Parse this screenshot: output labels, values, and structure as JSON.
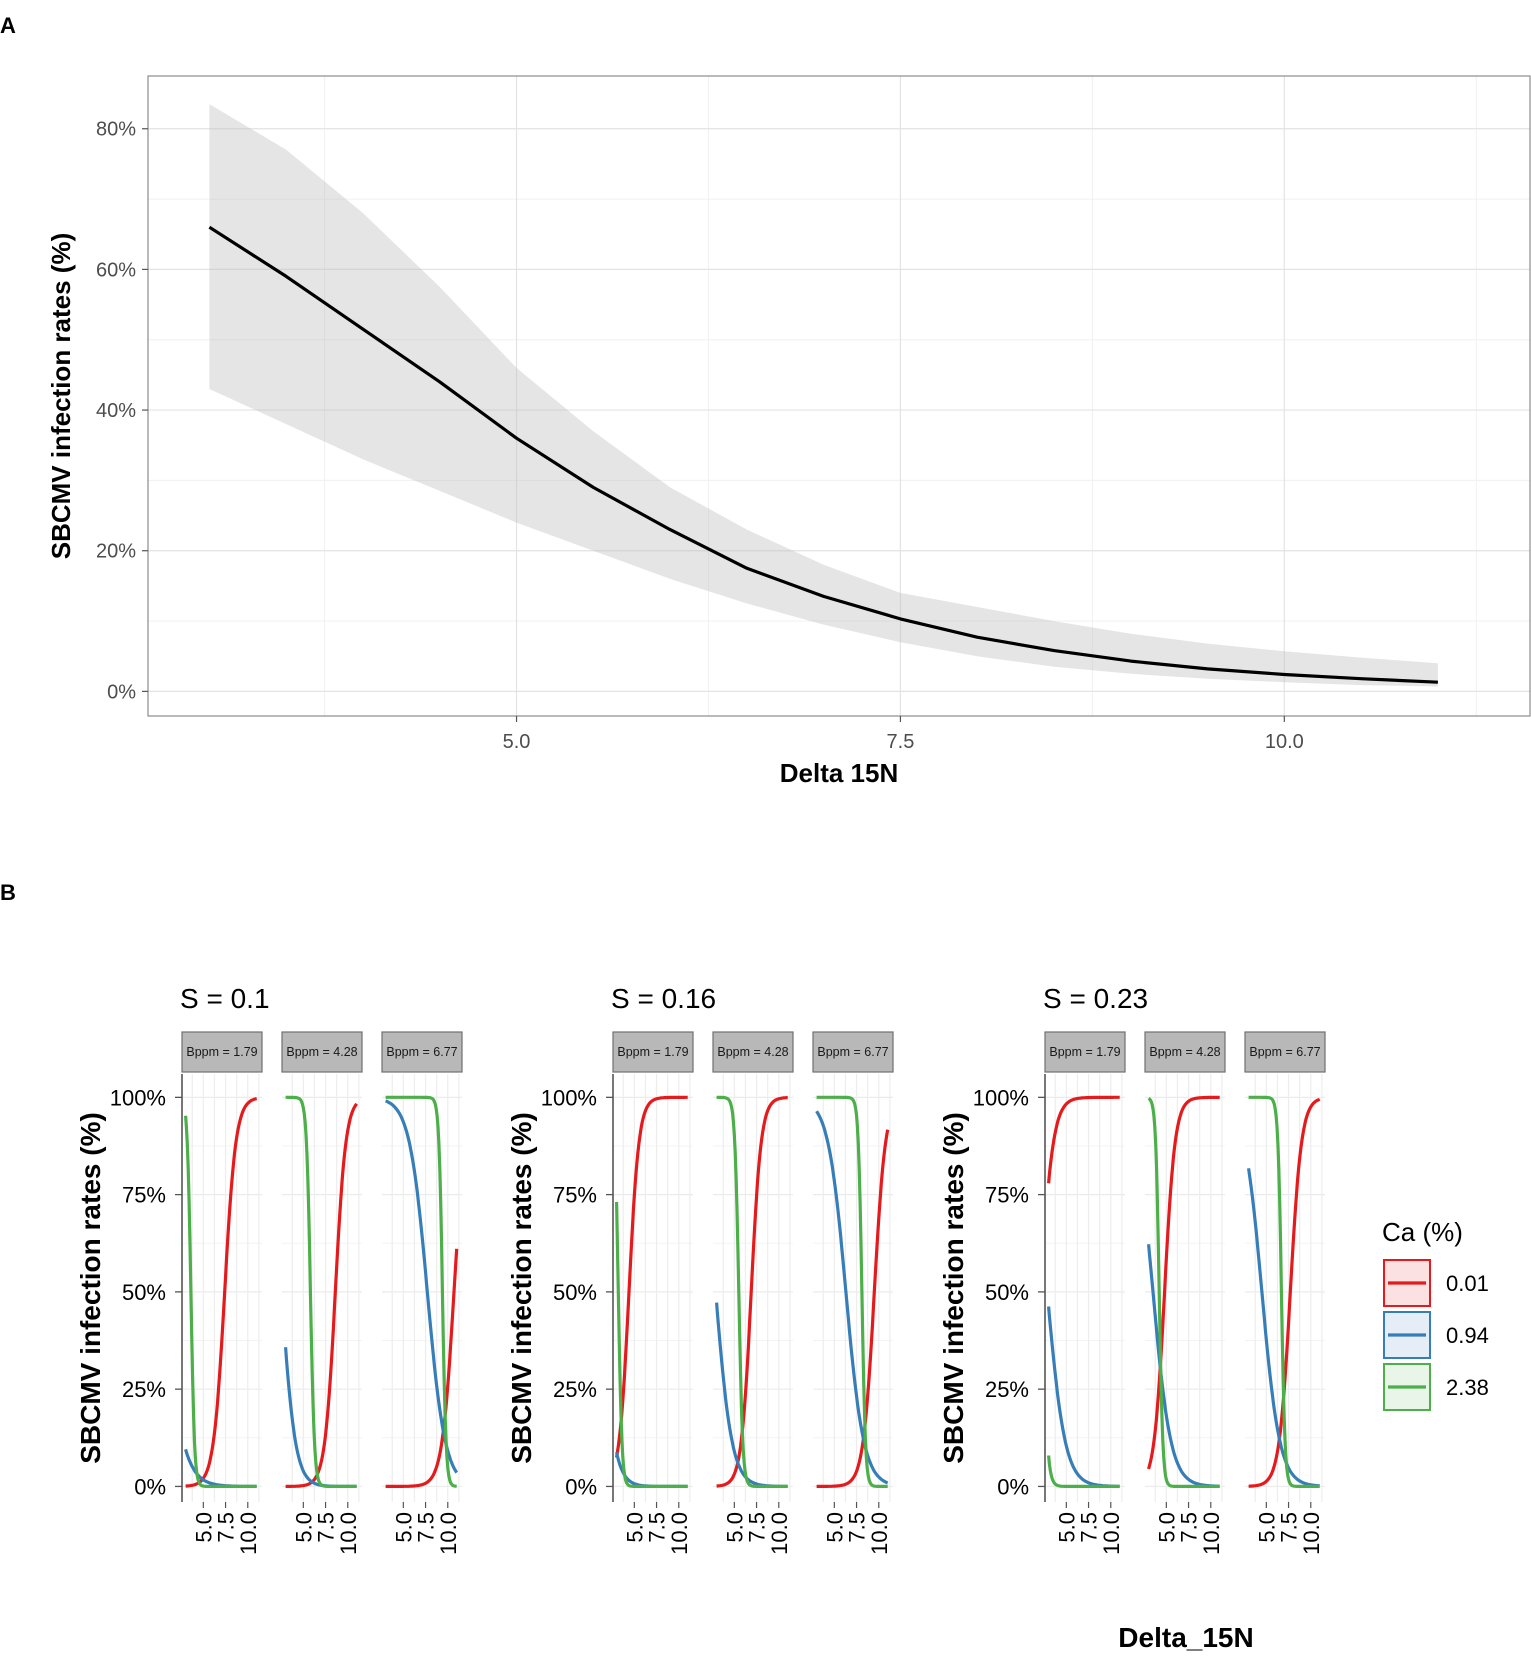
{
  "panel_labels": [
    "A",
    "B"
  ],
  "chart_data": [
    {
      "id": "A",
      "type": "line",
      "title": "",
      "xlabel": "Delta 15N",
      "ylabel": "SBCMV infection rates (%)",
      "xlim": [
        2.6,
        11.6
      ],
      "ylim": [
        -0.035,
        0.875
      ],
      "x_ticks": [
        5.0,
        7.5,
        10.0
      ],
      "x_tick_labels": [
        "5.0",
        "7.5",
        "10.0"
      ],
      "y_ticks": [
        0,
        0.2,
        0.4,
        0.6,
        0.8
      ],
      "y_tick_labels": [
        "0%",
        "20%",
        "40%",
        "60%",
        "80%"
      ],
      "grid": true,
      "series": [
        {
          "name": "fit",
          "color": "#000000",
          "x": [
            3.0,
            3.5,
            4.0,
            4.5,
            5.0,
            5.5,
            6.0,
            6.5,
            7.0,
            7.5,
            8.0,
            8.5,
            9.0,
            9.5,
            10.0,
            10.5,
            11.0
          ],
          "y": [
            0.66,
            0.59,
            0.515,
            0.44,
            0.36,
            0.29,
            0.23,
            0.175,
            0.135,
            0.103,
            0.077,
            0.058,
            0.043,
            0.032,
            0.024,
            0.018,
            0.013
          ],
          "lower": [
            0.43,
            0.38,
            0.33,
            0.285,
            0.24,
            0.2,
            0.16,
            0.125,
            0.095,
            0.07,
            0.05,
            0.035,
            0.025,
            0.018,
            0.013,
            0.009,
            0.007
          ],
          "upper": [
            0.835,
            0.77,
            0.68,
            0.575,
            0.46,
            0.37,
            0.29,
            0.23,
            0.18,
            0.14,
            0.12,
            0.1,
            0.082,
            0.068,
            0.057,
            0.048,
            0.04
          ]
        }
      ]
    },
    {
      "id": "B",
      "type": "line",
      "xlabel": "Delta_15N",
      "ylabel": "SBCMV infection rates (%)",
      "xlim": [
        2.6,
        11.6
      ],
      "ylim": [
        -0.04,
        1.06
      ],
      "x_ticks": [
        5.0,
        7.5,
        10.0
      ],
      "x_tick_labels": [
        "5.0",
        "7.5",
        "10.0"
      ],
      "y_ticks": [
        0,
        0.25,
        0.5,
        0.75,
        1.0
      ],
      "y_tick_labels": [
        "0%",
        "25%",
        "50%",
        "75%",
        "100%"
      ],
      "legend": {
        "title": "Ca (%)",
        "position": "right",
        "entries": [
          {
            "label": "0.01",
            "color": "#e41a1c"
          },
          {
            "label": "0.94",
            "color": "#377eb8"
          },
          {
            "label": "2.38",
            "color": "#4daf4a"
          }
        ]
      },
      "groups": [
        {
          "title": "S = 0.1",
          "facets": [
            {
              "strip": "Bppm = 1.79",
              "curves": [
                {
                  "ca": "0.01",
                  "x0": 7.4,
                  "k": 1.6,
                  "x_start": 3.0,
                  "lo_w": 0.9,
                  "hi_w": 0.9
                },
                {
                  "ca": "0.94",
                  "x0": 0.5,
                  "k": -0.9,
                  "x_start": 3.0,
                  "lo_w": 0.6,
                  "hi_w": 0.6
                },
                {
                  "ca": "2.38",
                  "x0": 3.6,
                  "k": -5.0,
                  "x_start": 3.0,
                  "lo_w": 0.6,
                  "hi_w": 1.0
                }
              ]
            },
            {
              "strip": "Bppm = 4.28",
              "curves": [
                {
                  "ca": "0.01",
                  "x0": 8.6,
                  "k": 1.7,
                  "x_start": 3.0,
                  "lo_w": 1.0,
                  "hi_w": 1.0
                },
                {
                  "ca": "0.94",
                  "x0": 2.55,
                  "k": -1.3,
                  "x_start": 3.0,
                  "lo_w": 0.8,
                  "hi_w": 1.0
                },
                {
                  "ca": "2.38",
                  "x0": 5.8,
                  "k": -4.5,
                  "x_start": 3.0,
                  "lo_w": 0.6,
                  "hi_w": 0.9
                }
              ]
            },
            {
              "strip": "Bppm = 6.77",
              "curves": [
                {
                  "ca": "0.01",
                  "x0": 10.7,
                  "k": 1.5,
                  "x_start": 3.0,
                  "lo_w": 1.0,
                  "hi_w": 1.0
                },
                {
                  "ca": "0.94",
                  "x0": 7.7,
                  "k": -1.0,
                  "x_start": 3.0,
                  "lo_w": 1.5,
                  "hi_w": 2.5
                },
                {
                  "ca": "2.38",
                  "x0": 9.4,
                  "k": -5.0,
                  "x_start": 3.0,
                  "lo_w": 0.6,
                  "hi_w": 0.9
                }
              ]
            }
          ]
        },
        {
          "title": "S = 0.16",
          "facets": [
            {
              "strip": "Bppm = 1.79",
              "curves": [
                {
                  "ca": "0.01",
                  "x0": 4.4,
                  "k": 1.8,
                  "x_start": 3.0,
                  "lo_w": 0.9,
                  "hi_w": 0.9
                },
                {
                  "ca": "0.94",
                  "x0": 1.2,
                  "k": -1.3,
                  "x_start": 3.0,
                  "lo_w": 0.9,
                  "hi_w": 1.2
                },
                {
                  "ca": "2.38",
                  "x0": 3.2,
                  "k": -5.0,
                  "x_start": 3.0,
                  "lo_w": 0.6,
                  "hi_w": 1.0
                }
              ]
            },
            {
              "strip": "Bppm = 4.28",
              "curves": [
                {
                  "ca": "0.01",
                  "x0": 6.9,
                  "k": 1.8,
                  "x_start": 3.0,
                  "lo_w": 0.9,
                  "hi_w": 0.9
                },
                {
                  "ca": "0.94",
                  "x0": 2.9,
                  "k": -1.1,
                  "x_start": 3.0,
                  "lo_w": 0.9,
                  "hi_w": 1.6
                },
                {
                  "ca": "2.38",
                  "x0": 5.5,
                  "k": -4.5,
                  "x_start": 3.0,
                  "lo_w": 0.6,
                  "hi_w": 0.9
                }
              ]
            },
            {
              "strip": "Bppm = 6.77",
              "curves": [
                {
                  "ca": "0.01",
                  "x0": 9.5,
                  "k": 1.6,
                  "x_start": 3.0,
                  "lo_w": 1.0,
                  "hi_w": 1.0
                },
                {
                  "ca": "0.94",
                  "x0": 6.3,
                  "k": -1.0,
                  "x_start": 3.0,
                  "lo_w": 1.4,
                  "hi_w": 2.0
                },
                {
                  "ca": "2.38",
                  "x0": 8.1,
                  "k": -5.0,
                  "x_start": 3.0,
                  "lo_w": 0.6,
                  "hi_w": 0.9
                }
              ]
            }
          ]
        },
        {
          "title": "S = 0.23",
          "facets": [
            {
              "strip": "Bppm = 1.79",
              "curves": [
                {
                  "ca": "0.01",
                  "x0": 2.1,
                  "k": 1.4,
                  "x_start": 3.0,
                  "lo_w": 1.2,
                  "hi_w": 0.9
                },
                {
                  "ca": "0.94",
                  "x0": 2.85,
                  "k": -1.0,
                  "x_start": 3.0,
                  "lo_w": 1.0,
                  "hi_w": 2.0
                },
                {
                  "ca": "2.38",
                  "x0": 2.3,
                  "k": -3.5,
                  "x_start": 3.0,
                  "lo_w": 0.9,
                  "hi_w": 1.5
                }
              ]
            },
            {
              "strip": "Bppm = 4.28",
              "curves": [
                {
                  "ca": "0.01",
                  "x0": 4.8,
                  "k": 1.7,
                  "x_start": 3.0,
                  "lo_w": 1.0,
                  "hi_w": 1.0
                },
                {
                  "ca": "0.94",
                  "x0": 3.5,
                  "k": -1.0,
                  "x_start": 3.0,
                  "lo_w": 1.0,
                  "hi_w": 2.2
                },
                {
                  "ca": "2.38",
                  "x0": 4.2,
                  "k": -5.0,
                  "x_start": 3.0,
                  "lo_w": 0.6,
                  "hi_w": 0.9
                }
              ]
            },
            {
              "strip": "Bppm = 6.77",
              "curves": [
                {
                  "ca": "0.01",
                  "x0": 7.7,
                  "k": 1.6,
                  "x_start": 3.0,
                  "lo_w": 1.0,
                  "hi_w": 1.0
                },
                {
                  "ca": "0.94",
                  "x0": 4.5,
                  "k": -1.0,
                  "x_start": 3.0,
                  "lo_w": 1.2,
                  "hi_w": 2.6
                },
                {
                  "ca": "2.38",
                  "x0": 6.7,
                  "k": -5.0,
                  "x_start": 3.0,
                  "lo_w": 0.6,
                  "hi_w": 0.9
                }
              ]
            }
          ]
        }
      ]
    }
  ]
}
